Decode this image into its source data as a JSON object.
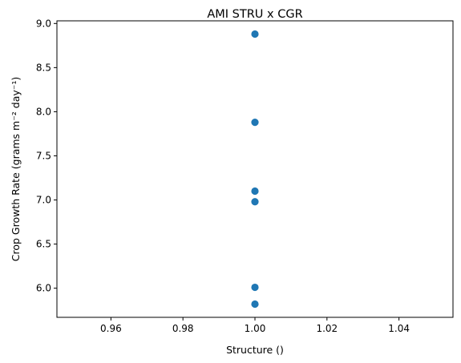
{
  "chart_data": {
    "type": "scatter",
    "title": "AMI STRU x CGR",
    "xlabel": "Structure ()",
    "ylabel": "Crop Growth Rate (grams m⁻² day⁻¹)",
    "xlim": [
      0.945,
      1.055
    ],
    "ylim": [
      5.67,
      9.03
    ],
    "xticks": [
      0.96,
      0.98,
      1.0,
      1.02,
      1.04
    ],
    "xtick_labels": [
      "0.96",
      "0.98",
      "1.00",
      "1.02",
      "1.04"
    ],
    "yticks": [
      6.0,
      6.5,
      7.0,
      7.5,
      8.0,
      8.5,
      9.0
    ],
    "ytick_labels": [
      "6.0",
      "6.5",
      "7.0",
      "7.5",
      "8.0",
      "8.5",
      "9.0"
    ],
    "grid": false,
    "marker_color": "#1f77b4",
    "series": [
      {
        "x": [
          1.0,
          1.0,
          1.0,
          1.0,
          1.0,
          1.0
        ],
        "y": [
          8.88,
          7.88,
          7.1,
          6.98,
          6.01,
          5.82
        ]
      }
    ]
  }
}
